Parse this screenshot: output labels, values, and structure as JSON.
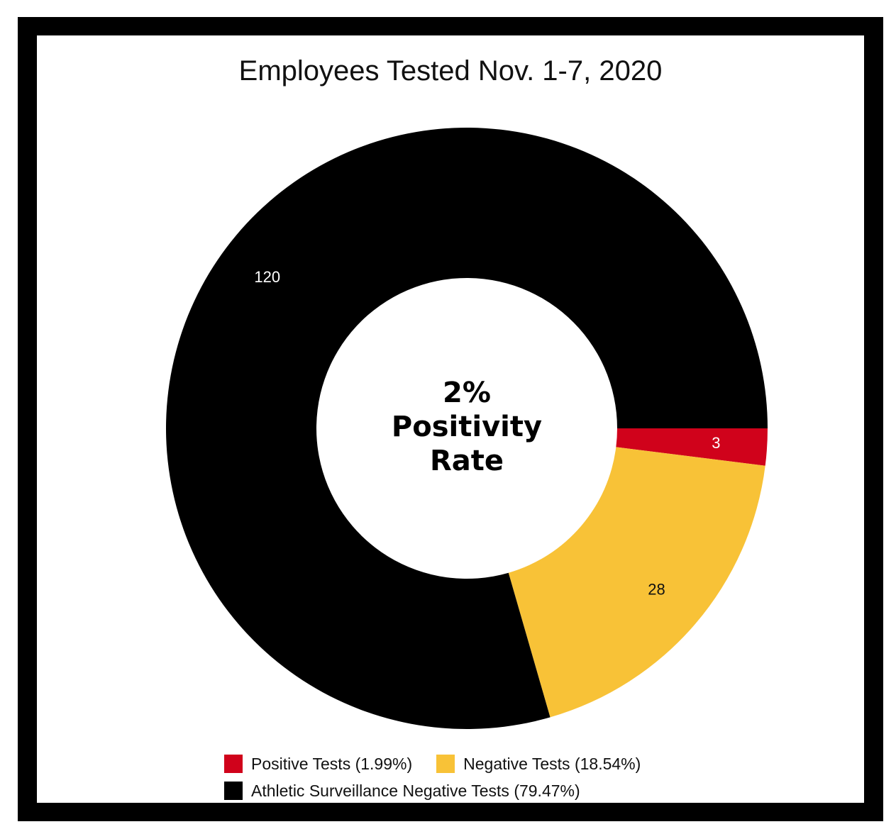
{
  "chart_data": {
    "type": "pie",
    "title": "Employees Tested Nov. 1-7, 2020",
    "center_text": [
      "2%",
      "Positivity",
      "Rate"
    ],
    "slices": [
      {
        "name": "Positive Tests (1.99%)",
        "value": 3,
        "label": "3",
        "color": "#d0021b",
        "label_color": "#ffffff"
      },
      {
        "name": "Negative Tests (18.54%)",
        "value": 28,
        "label": "28",
        "color": "#f8c237",
        "label_color": "#111111"
      },
      {
        "name": "Athletic Surveillance Negative Tests (79.47%)",
        "value": 120,
        "label": "120",
        "color": "#000000",
        "label_color": "#ffffff"
      }
    ],
    "legend_placement": "bottom"
  }
}
